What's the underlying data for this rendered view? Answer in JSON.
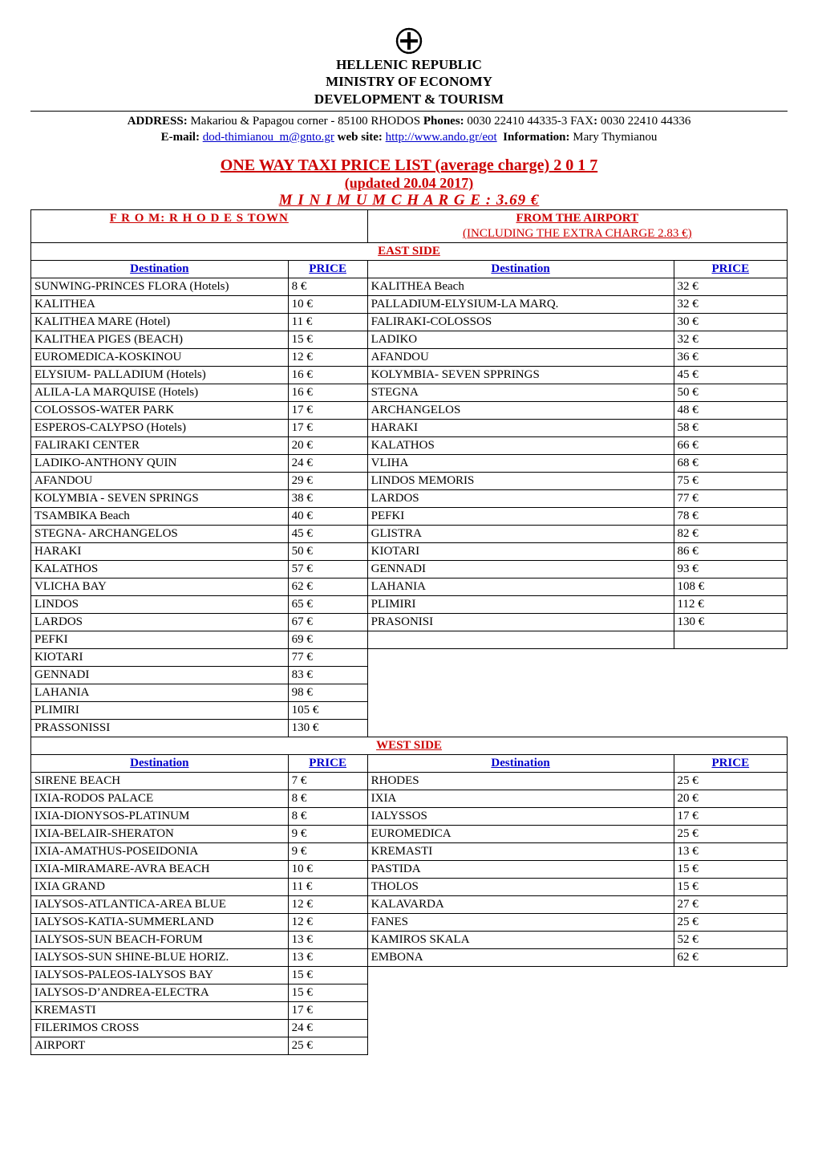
{
  "header": {
    "line1": "HELLENIC REPUBLIC",
    "line2": "MINISTRY OF ECONOMY",
    "line3": "DEVELOPMENT & TOURISM"
  },
  "address": {
    "label_address": "ADDRESS:",
    "address_text": " Makariou & Papagou corner - 85100 RHODOS ",
    "label_phones": "Phones:",
    "phones_text": " 0030 22410 44335-3 FAX",
    "label_fax_colon": ":",
    "fax_text": " 0030 22410 44336",
    "label_email": "E-mail:",
    "email_link": "dod-thimianou_m@gnto.gr",
    "label_website": "web site:",
    "website_link": "http://www.ando.gr/eot",
    "label_info": "Information:",
    "info_text": " Mary Thymianou"
  },
  "titles": {
    "main": "ONE WAY TAXI  PRICE  LIST (average charge)     2 0 1 7",
    "sub": "(updated 20.04 2017)",
    "min": "M I N I M U M     C H A R G E : 3.69  €"
  },
  "table_headers": {
    "from": "F R O M:  R H O D E S TOWN",
    "airport_1": "FROM THE AIRPORT",
    "airport_2": "(INCLUDING THE EXTRA CHARGE 2.83 €)",
    "east": "EAST SIDE",
    "west": "WEST SIDE",
    "destination": "Destination",
    "price": "PRICE"
  },
  "east_left": [
    {
      "d": "SUNWING-PRINCES FLORA (Hotels)",
      "p": "8 €"
    },
    {
      "d": "KALITHEA",
      "p": "10 €"
    },
    {
      "d": "KALITHEA MARE (Hotel)",
      "p": "11 €"
    },
    {
      "d": "KALITHEA PIGES (BEACH)",
      "p": "15 €"
    },
    {
      "d": "EUROMEDICA-KOSKINOU",
      "p": "12 €"
    },
    {
      "d": "ELYSIUM- PALLADIUM (Hotels)",
      "p": "16 €"
    },
    {
      "d": "ALILA-LA MARQUISE (Hotels)",
      "p": "16 €"
    },
    {
      "d": "COLOSSOS-WATER PARK",
      "p": "17 €"
    },
    {
      "d": "ESPEROS-CALYPSO  (Hotels)",
      "p": "17 €"
    },
    {
      "d": "FALIRAKI CENTER",
      "p": "20 €"
    },
    {
      "d": "LADIKO-ANTHONY QUIN",
      "p": "24 €"
    },
    {
      "d": "AFANDOU",
      "p": "29 €"
    },
    {
      "d": "KOLYMBIA - SEVEN SPRINGS",
      "p": "38 €"
    },
    {
      "d": "TSAMBIKA Beach",
      "p": "40 €"
    },
    {
      "d": "STEGNA- ARCHANGELOS",
      "p": "45 €"
    },
    {
      "d": "HARAKI",
      "p": "50 €"
    },
    {
      "d": "KALATHOS",
      "p": "57 €"
    },
    {
      "d": "VLICHA BAY",
      "p": "62 €"
    },
    {
      "d": "LINDOS",
      "p": "65 €"
    },
    {
      "d": "LARDOS",
      "p": "67 €"
    },
    {
      "d": "PEFKI",
      "p": "69 €"
    },
    {
      "d": "KIOTARI",
      "p": "77 €"
    },
    {
      "d": "GENNADI",
      "p": "83 €"
    },
    {
      "d": "LAHANIA",
      "p": "98 €"
    },
    {
      "d": "PLIMIRI",
      "p": "105 €"
    },
    {
      "d": "PRASSONISSI",
      "p": "130 €"
    }
  ],
  "east_right": [
    {
      "d": "KALITHEA Beach",
      "p": "32 €"
    },
    {
      "d": "PALLADIUM-ELYSIUM-LA MARQ.",
      "p": "32 €"
    },
    {
      "d": "FALIRAKI-COLOSSOS",
      "p": "30 €"
    },
    {
      "d": "LADIKO",
      "p": "32 €"
    },
    {
      "d": "AFANDOU",
      "p": "36 €"
    },
    {
      "d": "KOLYMBIA- SEVEN SPPRINGS",
      "p": "45 €"
    },
    {
      "d": "STEGNA",
      "p": "50 €"
    },
    {
      "d": "ARCHANGELOS",
      "p": "48 €"
    },
    {
      "d": "HARAKI",
      "p": "58 €"
    },
    {
      "d": "KALATHOS",
      "p": "66 €"
    },
    {
      "d": "VLIHA",
      "p": "68 €"
    },
    {
      "d": "LINDOS MEMORIS",
      "p": "75 €"
    },
    {
      "d": "LARDOS",
      "p": "77 €"
    },
    {
      "d": "PEFKI",
      "p": "78 €"
    },
    {
      "d": "GLISTRA",
      "p": "82 €"
    },
    {
      "d": "KIOTARI",
      "p": "86 €"
    },
    {
      "d": "GENNADI",
      "p": "93 €"
    },
    {
      "d": "LAHANIA",
      "p": "108 €"
    },
    {
      "d": "PLIMIRI",
      "p": "112 €"
    },
    {
      "d": "PRASONISI",
      "p": "130 €"
    }
  ],
  "west_left": [
    {
      "d": "SIRENE BEACH",
      "p": "7  €"
    },
    {
      "d": "IXIA-RODOS PALACE",
      "p": "8 €"
    },
    {
      "d": "IXIA-DIONYSOS-PLATINUM",
      "p": "8 €"
    },
    {
      "d": "IXIA-BELAIR-SHERATON",
      "p": "9 €"
    },
    {
      "d": "IXIA-AMATHUS-POSEIDONIA",
      "p": "9 €"
    },
    {
      "d": "IXIA-MIRAMARE-AVRA BEACH",
      "p": "10 €"
    },
    {
      "d": "IXIA GRAND",
      "p": "11 €"
    },
    {
      "d": "IALYSOS-ATLANTICA-AREA BLUE",
      "p": "12 €"
    },
    {
      "d": "IALYSOS-KATIA-SUMMERLAND",
      "p": "12 €"
    },
    {
      "d": "IALYSOS-SUN BEACH-FORUM",
      "p": "13 €"
    },
    {
      "d": "IALYSOS-SUN SHINE-BLUE HORIZ.",
      "p": "13 €"
    },
    {
      "d": "IALYSOS-PALEOS-IALYSOS BAY",
      "p": "15 €"
    },
    {
      "d": "IALYSOS-D’ANDREA-ELECTRA",
      "p": "15 €"
    },
    {
      "d": "KREMASTI",
      "p": "17 €"
    },
    {
      "d": "FILERIMOS CROSS",
      "p": "24 €"
    },
    {
      "d": "AIRPORT",
      "p": "25 €"
    }
  ],
  "west_right": [
    {
      "d": "RHODES",
      "p": "25 €"
    },
    {
      "d": "IXIA",
      "p": "20 €"
    },
    {
      "d": "IALYSSOS",
      "p": "17 €"
    },
    {
      "d": "EUROMEDICA",
      "p": "25 €"
    },
    {
      "d": "KREMASTI",
      "p": "13 €"
    },
    {
      "d": "PASTIDA",
      "p": "15 €"
    },
    {
      "d": "THOLOS",
      "p": "15 €"
    },
    {
      "d": "KALAVARDA",
      "p": "27 €"
    },
    {
      "d": "FANES",
      "p": "25 €"
    },
    {
      "d": "KAMIROS SKALA",
      "p": "52 €"
    },
    {
      "d": "EMBONA",
      "p": "62 €"
    }
  ],
  "style": {
    "accent_red": "#cc0000",
    "link_blue": "#0000cc",
    "border": "#000000",
    "font_family": "Times New Roman"
  }
}
